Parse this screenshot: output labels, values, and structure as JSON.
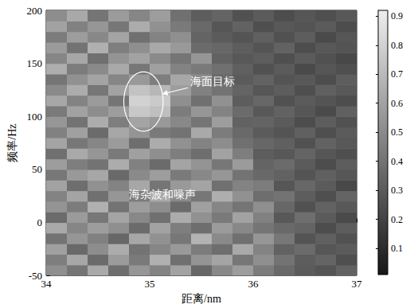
{
  "chart_data": {
    "type": "heatmap",
    "xlabel": "距离/nm",
    "ylabel": "频率/Hz",
    "xlim": [
      34,
      37
    ],
    "ylim": [
      -50,
      200
    ],
    "xticks": [
      34,
      35,
      36,
      37
    ],
    "yticks": [
      -50,
      0,
      50,
      100,
      150,
      200
    ],
    "x_bins": [
      34,
      34.2,
      34.4,
      34.6,
      34.8,
      35,
      35.2,
      35.4,
      35.6,
      35.8,
      36,
      36.2,
      36.4,
      36.6,
      36.8,
      37
    ],
    "y_bins": [
      -50,
      -40,
      -30,
      -20,
      -10,
      0,
      10,
      20,
      30,
      40,
      50,
      60,
      70,
      80,
      90,
      100,
      110,
      120,
      130,
      140,
      150,
      160,
      170,
      180,
      190,
      200
    ],
    "cells": [
      [
        0.52,
        0.41,
        0.63,
        0.38,
        0.55,
        0.47,
        0.6,
        0.35,
        0.49,
        0.58,
        0.44,
        0.36,
        0.3,
        0.27,
        0.33
      ],
      [
        0.45,
        0.62,
        0.37,
        0.57,
        0.43,
        0.66,
        0.39,
        0.54,
        0.61,
        0.42,
        0.52,
        0.4,
        0.31,
        0.34,
        0.25
      ],
      [
        0.59,
        0.36,
        0.51,
        0.64,
        0.4,
        0.48,
        0.56,
        0.44,
        0.38,
        0.63,
        0.47,
        0.33,
        0.37,
        0.28,
        0.3
      ],
      [
        0.4,
        0.55,
        0.46,
        0.35,
        0.62,
        0.53,
        0.42,
        0.67,
        0.5,
        0.39,
        0.55,
        0.42,
        0.27,
        0.32,
        0.26
      ],
      [
        0.63,
        0.48,
        0.58,
        0.52,
        0.37,
        0.6,
        0.45,
        0.38,
        0.57,
        0.49,
        0.41,
        0.36,
        0.34,
        0.24,
        0.31
      ],
      [
        0.37,
        0.57,
        0.42,
        0.61,
        0.49,
        0.39,
        0.64,
        0.53,
        0.43,
        0.6,
        0.46,
        0.29,
        0.38,
        0.3,
        0.23
      ],
      [
        0.54,
        0.44,
        0.66,
        0.4,
        0.58,
        0.51,
        0.37,
        0.59,
        0.48,
        0.41,
        0.52,
        0.35,
        0.26,
        0.33,
        0.29
      ],
      [
        0.47,
        0.61,
        0.39,
        0.55,
        0.44,
        0.63,
        0.5,
        0.42,
        0.65,
        0.53,
        0.38,
        0.4,
        0.31,
        0.25,
        0.34
      ],
      [
        0.6,
        0.38,
        0.53,
        0.47,
        0.62,
        0.41,
        0.56,
        0.61,
        0.39,
        0.47,
        0.44,
        0.28,
        0.35,
        0.3,
        0.22
      ],
      [
        0.42,
        0.56,
        0.62,
        0.36,
        0.5,
        0.58,
        0.43,
        0.49,
        0.55,
        0.4,
        0.36,
        0.33,
        0.27,
        0.32,
        0.28
      ],
      [
        0.58,
        0.45,
        0.4,
        0.64,
        0.46,
        0.37,
        0.61,
        0.54,
        0.42,
        0.57,
        0.34,
        0.37,
        0.3,
        0.24,
        0.31
      ],
      [
        0.39,
        0.63,
        0.55,
        0.43,
        0.59,
        0.52,
        0.45,
        0.38,
        0.6,
        0.45,
        0.31,
        0.29,
        0.34,
        0.28,
        0.25
      ],
      [
        0.61,
        0.42,
        0.48,
        0.57,
        0.38,
        0.64,
        0.53,
        0.47,
        0.51,
        0.39,
        0.35,
        0.32,
        0.26,
        0.33,
        0.29
      ],
      [
        0.46,
        0.59,
        0.37,
        0.62,
        0.54,
        0.43,
        0.4,
        0.63,
        0.44,
        0.36,
        0.3,
        0.27,
        0.32,
        0.25,
        0.3
      ],
      [
        0.55,
        0.4,
        0.64,
        0.45,
        0.61,
        0.56,
        0.49,
        0.41,
        0.58,
        0.33,
        0.34,
        0.3,
        0.24,
        0.31,
        0.26
      ],
      [
        0.43,
        0.6,
        0.51,
        0.58,
        0.76,
        0.72,
        0.44,
        0.55,
        0.47,
        0.37,
        0.29,
        0.33,
        0.28,
        0.23,
        0.32
      ],
      [
        0.62,
        0.47,
        0.57,
        0.41,
        0.8,
        0.77,
        0.52,
        0.39,
        0.53,
        0.31,
        0.35,
        0.26,
        0.3,
        0.27,
        0.24
      ],
      [
        0.5,
        0.64,
        0.42,
        0.6,
        0.74,
        0.69,
        0.58,
        0.46,
        0.4,
        0.34,
        0.28,
        0.31,
        0.25,
        0.32,
        0.29
      ],
      [
        0.41,
        0.53,
        0.61,
        0.48,
        0.56,
        0.45,
        0.62,
        0.51,
        0.36,
        0.3,
        0.33,
        0.27,
        0.29,
        0.24,
        0.31
      ],
      [
        0.65,
        0.44,
        0.5,
        0.63,
        0.42,
        0.59,
        0.47,
        0.43,
        0.39,
        0.32,
        0.26,
        0.3,
        0.23,
        0.28,
        0.25
      ],
      [
        0.48,
        0.62,
        0.39,
        0.54,
        0.6,
        0.5,
        0.41,
        0.55,
        0.33,
        0.29,
        0.31,
        0.25,
        0.3,
        0.26,
        0.22
      ],
      [
        0.57,
        0.4,
        0.66,
        0.45,
        0.52,
        0.63,
        0.56,
        0.37,
        0.35,
        0.31,
        0.27,
        0.33,
        0.24,
        0.29,
        0.27
      ],
      [
        0.44,
        0.58,
        0.49,
        0.61,
        0.39,
        0.47,
        0.52,
        0.34,
        0.3,
        0.27,
        0.32,
        0.26,
        0.31,
        0.23,
        0.28
      ],
      [
        0.6,
        0.46,
        0.55,
        0.42,
        0.64,
        0.53,
        0.43,
        0.36,
        0.28,
        0.33,
        0.25,
        0.29,
        0.27,
        0.3,
        0.24
      ],
      [
        0.51,
        0.63,
        0.41,
        0.57,
        0.48,
        0.58,
        0.39,
        0.31,
        0.34,
        0.26,
        0.3,
        0.24,
        0.28,
        0.25,
        0.29
      ]
    ],
    "color_range": [
      0.01,
      0.92
    ],
    "color_ticks": [
      0.1,
      0.2,
      0.3,
      0.4,
      0.5,
      0.6,
      0.7,
      0.8,
      0.9
    ],
    "annotations": [
      "海面目标",
      "海杂波和噪声"
    ]
  }
}
